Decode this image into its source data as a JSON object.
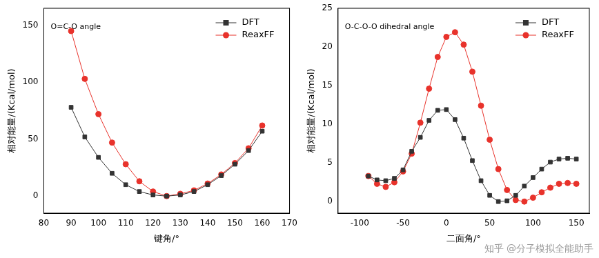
{
  "chart_data": [
    {
      "type": "line",
      "annotation": "O=C-O angle",
      "x_label": "键角/°",
      "y_label": "相对能量/(Kcal/mol)",
      "x": [
        90,
        95,
        100,
        105,
        110,
        115,
        120,
        125,
        130,
        135,
        140,
        145,
        150,
        155,
        160
      ],
      "series": [
        {
          "name": "DFT",
          "color": "#333333",
          "marker": "square",
          "values": [
            78,
            52,
            34,
            20,
            10,
            4,
            1,
            0,
            1,
            4,
            10,
            18,
            28,
            40,
            57
          ]
        },
        {
          "name": "ReaxFF",
          "color": "#e8322b",
          "marker": "circle",
          "values": [
            145,
            103,
            72,
            47,
            28,
            13,
            4,
            0,
            2,
            5,
            11,
            19,
            29,
            42,
            62
          ]
        }
      ],
      "xlim": [
        80,
        170
      ],
      "xticks": [
        80,
        90,
        100,
        110,
        120,
        130,
        140,
        150,
        160,
        170
      ],
      "ylim": [
        -15,
        165
      ],
      "yticks": [
        0,
        50,
        100,
        150
      ],
      "grid": false,
      "legend": "upper right"
    },
    {
      "type": "line",
      "annotation": "O-C-O-O dihedral angle",
      "x_label": "二面角/°",
      "y_label": "相对能量/(Kcal/mol)",
      "x": [
        -90,
        -80,
        -70,
        -60,
        -50,
        -40,
        -30,
        -20,
        -10,
        0,
        10,
        20,
        30,
        40,
        50,
        60,
        70,
        80,
        90,
        100,
        110,
        120,
        130,
        140,
        150
      ],
      "series": [
        {
          "name": "DFT",
          "color": "#333333",
          "marker": "square",
          "values": [
            3.3,
            2.8,
            2.7,
            3.0,
            4.1,
            6.5,
            8.3,
            10.5,
            11.8,
            11.9,
            10.6,
            8.2,
            5.3,
            2.7,
            0.8,
            0.0,
            0.1,
            0.8,
            2.0,
            3.1,
            4.2,
            5.1,
            5.5,
            5.6,
            5.5
          ]
        },
        {
          "name": "ReaxFF",
          "color": "#e8322b",
          "marker": "circle",
          "values": [
            3.3,
            2.3,
            1.9,
            2.5,
            3.9,
            6.2,
            10.2,
            14.6,
            18.7,
            21.3,
            21.9,
            20.3,
            16.8,
            12.4,
            8.0,
            4.2,
            1.5,
            0.2,
            0.0,
            0.5,
            1.2,
            1.8,
            2.3,
            2.4,
            2.3
          ]
        }
      ],
      "xlim": [
        -125,
        165
      ],
      "xticks": [
        -100,
        -50,
        0,
        50,
        100,
        150
      ],
      "ylim": [
        -1.5,
        25
      ],
      "yticks": [
        0,
        5,
        10,
        15,
        20,
        25
      ],
      "grid": false,
      "legend": "upper right"
    }
  ],
  "watermark": "知乎 @分子模拟全能助手"
}
